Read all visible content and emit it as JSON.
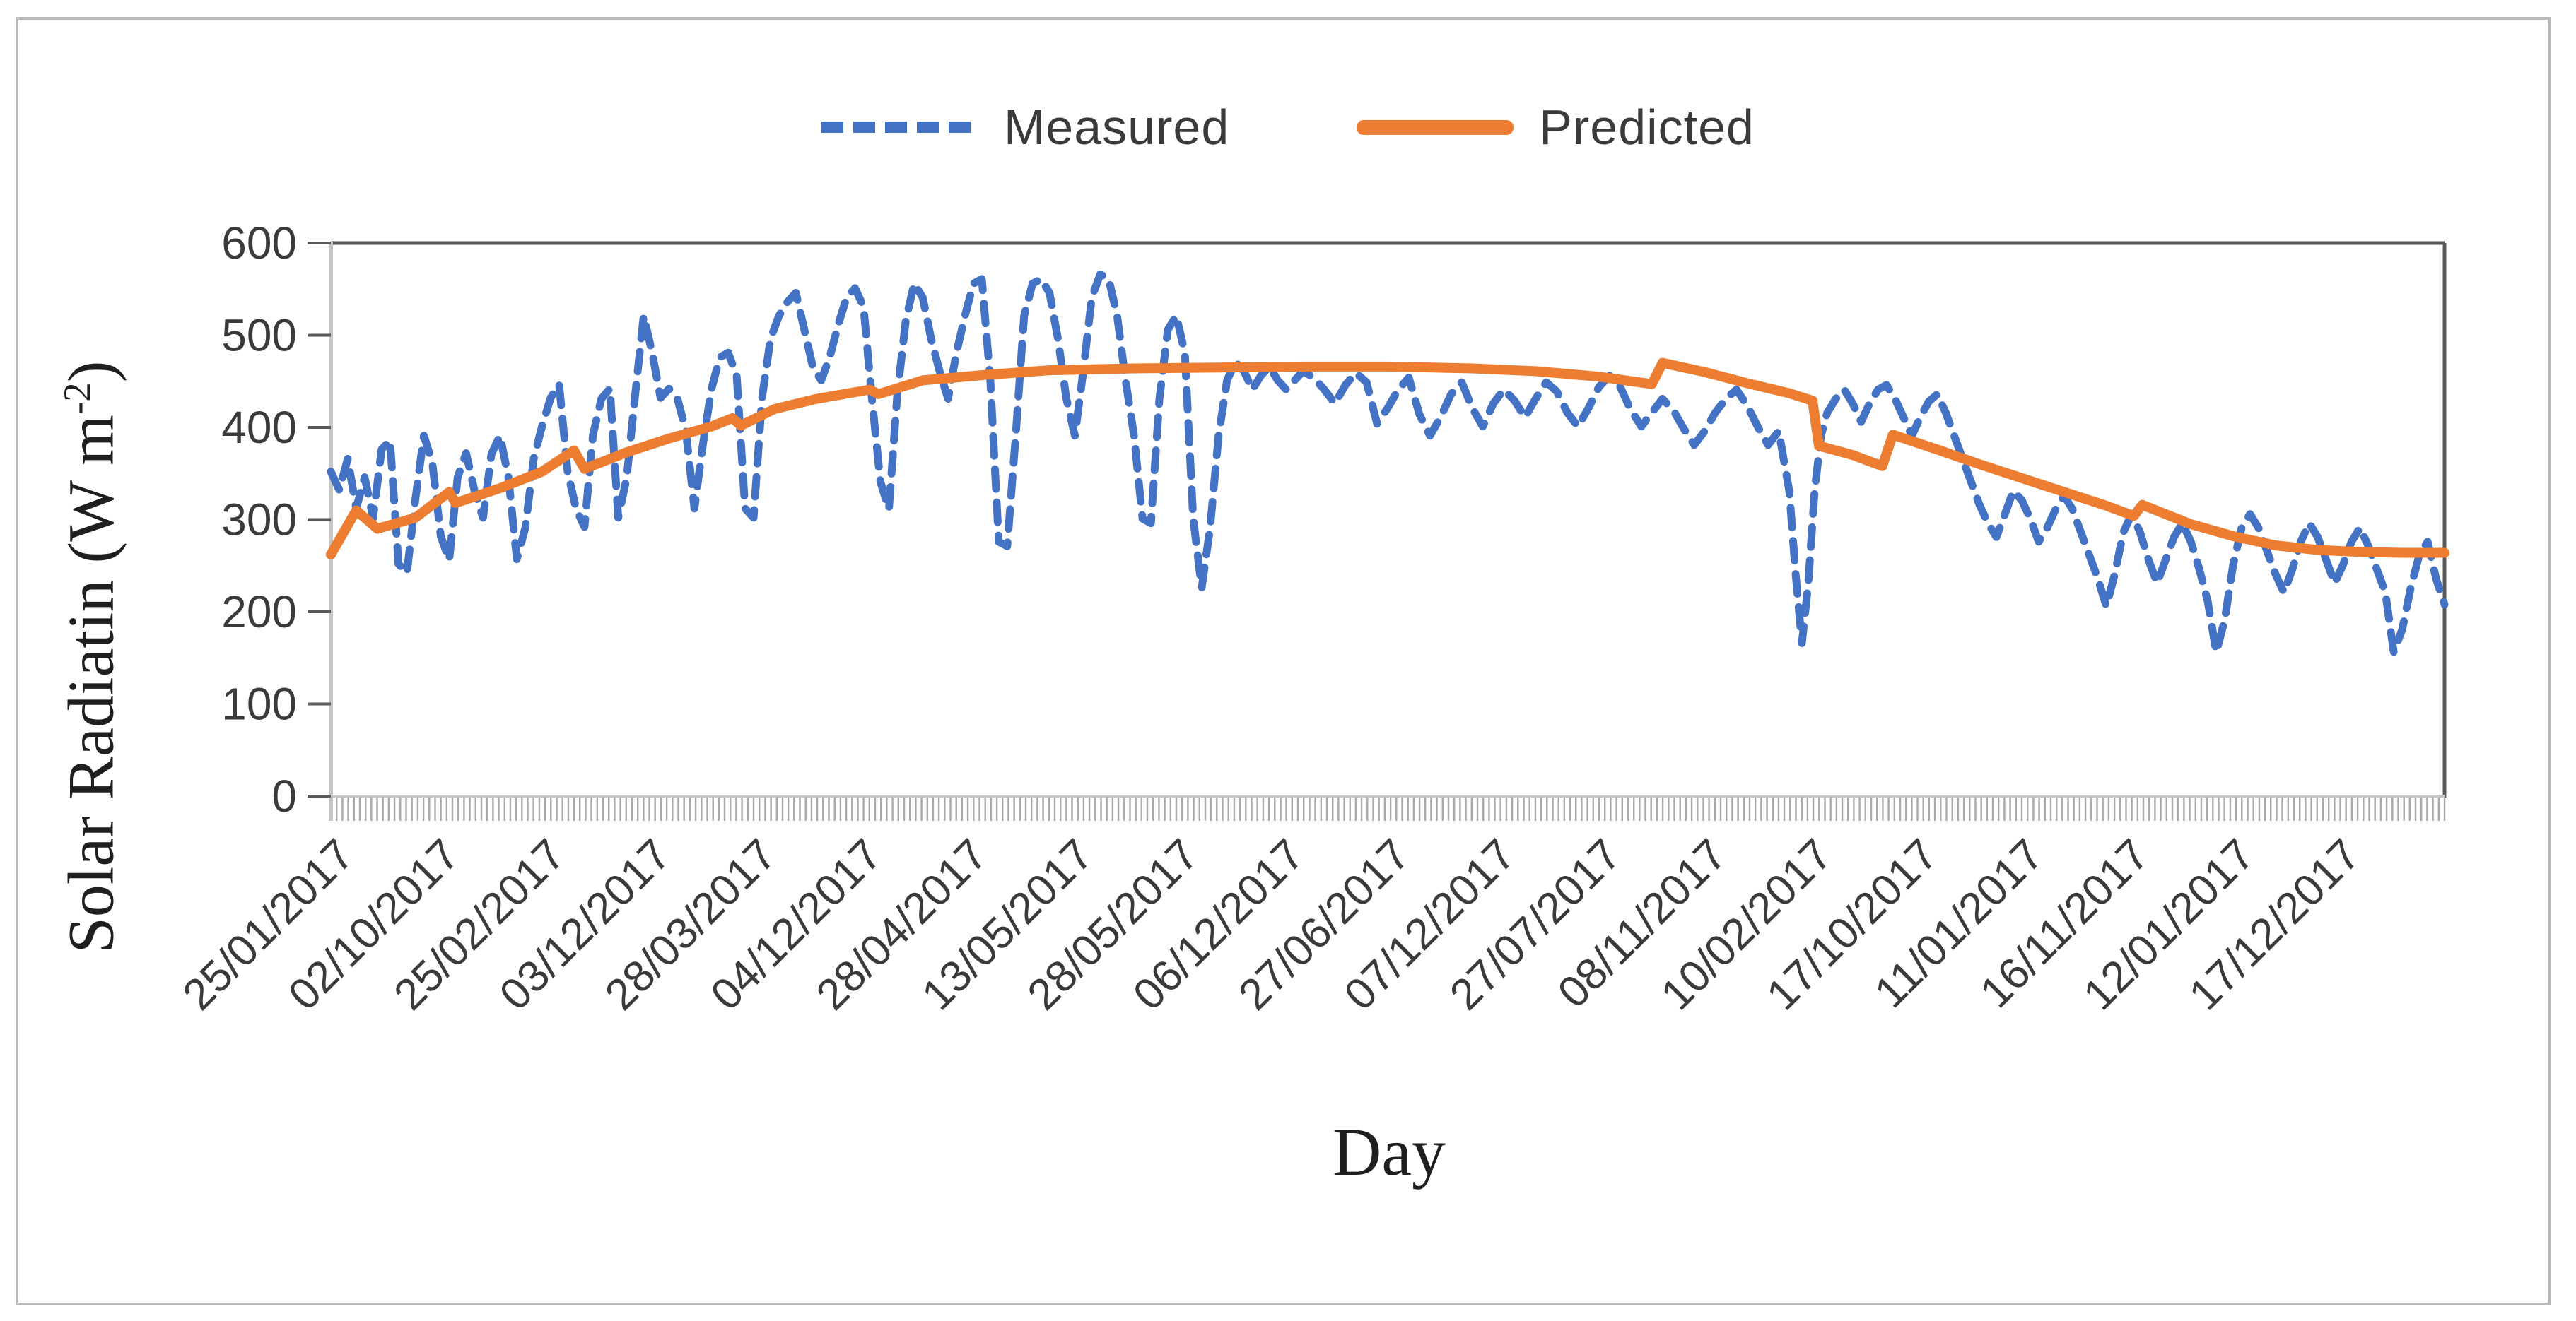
{
  "page": {
    "background": "#ffffff",
    "border_color": "#b7b9bb"
  },
  "legend": {
    "items": [
      {
        "label": "Measured",
        "color": "#4472C4",
        "style": "dashed"
      },
      {
        "label": "Predicted",
        "color": "#ED7D31",
        "style": "solid"
      }
    ]
  },
  "axes": {
    "y_title_prefix": "Solar Radiatin (W m",
    "y_title_sup": "-2",
    "y_title_suffix": ")",
    "x_title": "Day"
  },
  "chart_data": {
    "type": "line",
    "title": "",
    "xlabel": "Day",
    "ylabel": "Solar Radiatin (W m-2)",
    "ylim": [
      0,
      600
    ],
    "y_ticks": [
      0,
      100,
      200,
      300,
      400,
      500,
      600
    ],
    "grid": false,
    "legend_position": "top-center",
    "x_tick_labels": [
      "25/01/2017",
      "02/10/2017",
      "25/02/2017",
      "03/12/2017",
      "28/03/2017",
      "04/12/2017",
      "28/04/2017",
      "13/05/2017",
      "28/05/2017",
      "06/12/2017",
      "27/06/2017",
      "07/12/2017",
      "27/07/2017",
      "08/11/2017",
      "10/02/2017",
      "17/10/2017",
      "11/01/2017",
      "16/11/2017",
      "12/01/2017",
      "17/12/2017"
    ],
    "x_unit": "percent-of-axis",
    "series": [
      {
        "name": "Measured",
        "color": "#4472C4",
        "line_style": "dashed",
        "points": [
          [
            0,
            352
          ],
          [
            0.4,
            332
          ],
          [
            0.8,
            366
          ],
          [
            1.2,
            312
          ],
          [
            1.6,
            346
          ],
          [
            2,
            302
          ],
          [
            2.4,
            376
          ],
          [
            2.8,
            386
          ],
          [
            3.2,
            252
          ],
          [
            3.6,
            242
          ],
          [
            4,
            322
          ],
          [
            4.4,
            391
          ],
          [
            4.8,
            362
          ],
          [
            5.2,
            282
          ],
          [
            5.6,
            256
          ],
          [
            6,
            346
          ],
          [
            6.4,
            372
          ],
          [
            6.8,
            331
          ],
          [
            7.2,
            302
          ],
          [
            7.6,
            371
          ],
          [
            8,
            391
          ],
          [
            8.4,
            346
          ],
          [
            8.8,
            257
          ],
          [
            9.2,
            291
          ],
          [
            9.6,
            366
          ],
          [
            10,
            402
          ],
          [
            10.4,
            432
          ],
          [
            10.8,
            447
          ],
          [
            11.2,
            352
          ],
          [
            11.6,
            312
          ],
          [
            12,
            292
          ],
          [
            12.4,
            392
          ],
          [
            12.8,
            431
          ],
          [
            13.2,
            442
          ],
          [
            13.6,
            302
          ],
          [
            14,
            346
          ],
          [
            14.4,
            436
          ],
          [
            14.8,
            521
          ],
          [
            15.2,
            481
          ],
          [
            15.6,
            432
          ],
          [
            16,
            442
          ],
          [
            16.4,
            431
          ],
          [
            16.8,
            396
          ],
          [
            17.2,
            312
          ],
          [
            17.6,
            381
          ],
          [
            18,
            441
          ],
          [
            18.4,
            476
          ],
          [
            18.8,
            481
          ],
          [
            19.2,
            456
          ],
          [
            19.6,
            312
          ],
          [
            20,
            302
          ],
          [
            20.4,
            432
          ],
          [
            20.8,
            496
          ],
          [
            21.2,
            521
          ],
          [
            21.6,
            536
          ],
          [
            22,
            546
          ],
          [
            22.4,
            506
          ],
          [
            22.8,
            466
          ],
          [
            23.2,
            451
          ],
          [
            23.6,
            476
          ],
          [
            24,
            511
          ],
          [
            24.4,
            541
          ],
          [
            24.8,
            551
          ],
          [
            25.2,
            531
          ],
          [
            25.6,
            431
          ],
          [
            26,
            341
          ],
          [
            26.4,
            311
          ],
          [
            26.8,
            436
          ],
          [
            27.2,
            516
          ],
          [
            27.6,
            556
          ],
          [
            28,
            541
          ],
          [
            28.4,
            496
          ],
          [
            28.8,
            461
          ],
          [
            29.2,
            431
          ],
          [
            29.6,
            481
          ],
          [
            30,
            521
          ],
          [
            30.4,
            556
          ],
          [
            30.8,
            561
          ],
          [
            31.2,
            451
          ],
          [
            31.6,
            276
          ],
          [
            32,
            271
          ],
          [
            32.4,
            391
          ],
          [
            32.8,
            521
          ],
          [
            33.2,
            556
          ],
          [
            33.6,
            561
          ],
          [
            34,
            546
          ],
          [
            34.4,
            496
          ],
          [
            34.8,
            431
          ],
          [
            35.2,
            391
          ],
          [
            35.6,
            461
          ],
          [
            36,
            541
          ],
          [
            36.4,
            566
          ],
          [
            36.8,
            561
          ],
          [
            37.2,
            521
          ],
          [
            37.6,
            451
          ],
          [
            38,
            391
          ],
          [
            38.4,
            301
          ],
          [
            38.8,
            296
          ],
          [
            39.2,
            431
          ],
          [
            39.6,
            506
          ],
          [
            40,
            521
          ],
          [
            40.4,
            481
          ],
          [
            40.8,
            301
          ],
          [
            41.2,
            226
          ],
          [
            41.6,
            291
          ],
          [
            42,
            391
          ],
          [
            42.4,
            451
          ],
          [
            42.8,
            471
          ],
          [
            43.2,
            461
          ],
          [
            43.6,
            441
          ],
          [
            44,
            456
          ],
          [
            44.4,
            466
          ],
          [
            44.8,
            451
          ],
          [
            45.2,
            441
          ],
          [
            45.6,
            451
          ],
          [
            46,
            461
          ],
          [
            46.5,
            454
          ],
          [
            47,
            441
          ],
          [
            47.5,
            426
          ],
          [
            48,
            446
          ],
          [
            48.5,
            459
          ],
          [
            49,
            449
          ],
          [
            49.5,
            404
          ],
          [
            50,
            421
          ],
          [
            50.5,
            441
          ],
          [
            51,
            454
          ],
          [
            51.5,
            414
          ],
          [
            52,
            391
          ],
          [
            52.5,
            411
          ],
          [
            53,
            436
          ],
          [
            53.5,
            449
          ],
          [
            54,
            421
          ],
          [
            54.5,
            401
          ],
          [
            55,
            426
          ],
          [
            55.5,
            441
          ],
          [
            56,
            429
          ],
          [
            56.5,
            411
          ],
          [
            57,
            431
          ],
          [
            57.5,
            449
          ],
          [
            58,
            439
          ],
          [
            58.5,
            416
          ],
          [
            59,
            401
          ],
          [
            59.5,
            421
          ],
          [
            60,
            444
          ],
          [
            60.5,
            456
          ],
          [
            61,
            444
          ],
          [
            61.5,
            419
          ],
          [
            62,
            401
          ],
          [
            62.5,
            416
          ],
          [
            63,
            431
          ],
          [
            63.5,
            419
          ],
          [
            64,
            399
          ],
          [
            64.5,
            381
          ],
          [
            65,
            396
          ],
          [
            65.5,
            416
          ],
          [
            66,
            431
          ],
          [
            66.5,
            441
          ],
          [
            67,
            424
          ],
          [
            67.5,
            401
          ],
          [
            68,
            381
          ],
          [
            68.5,
            396
          ],
          [
            69,
            331
          ],
          [
            69.3,
            241
          ],
          [
            69.6,
            166
          ],
          [
            69.9,
            231
          ],
          [
            70.2,
            331
          ],
          [
            70.5,
            391
          ],
          [
            70.8,
            416
          ],
          [
            71.2,
            431
          ],
          [
            71.6,
            441
          ],
          [
            72,
            426
          ],
          [
            72.4,
            406
          ],
          [
            72.8,
            426
          ],
          [
            73.2,
            441
          ],
          [
            73.6,
            446
          ],
          [
            74,
            431
          ],
          [
            74.4,
            411
          ],
          [
            74.8,
            391
          ],
          [
            75.2,
            411
          ],
          [
            75.6,
            428
          ],
          [
            76,
            436
          ],
          [
            76.4,
            416
          ],
          [
            76.8,
            391
          ],
          [
            77.2,
            366
          ],
          [
            77.6,
            341
          ],
          [
            78,
            316
          ],
          [
            78.4,
            296
          ],
          [
            78.8,
            281
          ],
          [
            79.2,
            306
          ],
          [
            79.6,
            331
          ],
          [
            80,
            321
          ],
          [
            80.4,
            301
          ],
          [
            80.8,
            276
          ],
          [
            81.2,
            291
          ],
          [
            81.6,
            311
          ],
          [
            82,
            326
          ],
          [
            82.4,
            311
          ],
          [
            82.8,
            286
          ],
          [
            83.2,
            261
          ],
          [
            83.6,
            236
          ],
          [
            84,
            206
          ],
          [
            84.4,
            241
          ],
          [
            84.8,
            286
          ],
          [
            85.2,
            306
          ],
          [
            85.6,
            286
          ],
          [
            86,
            256
          ],
          [
            86.4,
            231
          ],
          [
            86.8,
            256
          ],
          [
            87.2,
            281
          ],
          [
            87.6,
            296
          ],
          [
            88,
            276
          ],
          [
            88.4,
            246
          ],
          [
            88.8,
            211
          ],
          [
            89.2,
            156
          ],
          [
            89.6,
            191
          ],
          [
            90,
            251
          ],
          [
            90.4,
            291
          ],
          [
            90.8,
            306
          ],
          [
            91.2,
            291
          ],
          [
            91.6,
            266
          ],
          [
            92,
            241
          ],
          [
            92.4,
            221
          ],
          [
            92.8,
            246
          ],
          [
            93.2,
            276
          ],
          [
            93.6,
            296
          ],
          [
            94,
            281
          ],
          [
            94.4,
            256
          ],
          [
            94.8,
            231
          ],
          [
            95.2,
            251
          ],
          [
            95.6,
            276
          ],
          [
            96,
            291
          ],
          [
            96.4,
            271
          ],
          [
            96.8,
            246
          ],
          [
            97.2,
            221
          ],
          [
            97.6,
            156
          ],
          [
            98,
            181
          ],
          [
            98.4,
            226
          ],
          [
            98.8,
            261
          ],
          [
            99.2,
            276
          ],
          [
            99.6,
            236
          ],
          [
            100,
            208
          ]
        ]
      },
      {
        "name": "Predicted",
        "color": "#ED7D31",
        "line_style": "solid",
        "points": [
          [
            0,
            262
          ],
          [
            1.2,
            310
          ],
          [
            2.2,
            290
          ],
          [
            4,
            302
          ],
          [
            5.6,
            330
          ],
          [
            5.9,
            318
          ],
          [
            8,
            334
          ],
          [
            10,
            352
          ],
          [
            11.5,
            375
          ],
          [
            12,
            355
          ],
          [
            14,
            373
          ],
          [
            16,
            388
          ],
          [
            18,
            401
          ],
          [
            19,
            410
          ],
          [
            19.4,
            402
          ],
          [
            21,
            420
          ],
          [
            23,
            431
          ],
          [
            25.5,
            441
          ],
          [
            25.9,
            436
          ],
          [
            28,
            451
          ],
          [
            31,
            457
          ],
          [
            34,
            462
          ],
          [
            38,
            464
          ],
          [
            42,
            465
          ],
          [
            46,
            466
          ],
          [
            50,
            466
          ],
          [
            54,
            464
          ],
          [
            57,
            461
          ],
          [
            60,
            455
          ],
          [
            62.5,
            447
          ],
          [
            63,
            470
          ],
          [
            65,
            460
          ],
          [
            67,
            448
          ],
          [
            69,
            437
          ],
          [
            70.1,
            429
          ],
          [
            70.4,
            380
          ],
          [
            72,
            370
          ],
          [
            73.4,
            358
          ],
          [
            73.9,
            392
          ],
          [
            76,
            376
          ],
          [
            78,
            360
          ],
          [
            80,
            345
          ],
          [
            82,
            330
          ],
          [
            84,
            315
          ],
          [
            85.3,
            304
          ],
          [
            85.7,
            316
          ],
          [
            88,
            295
          ],
          [
            90,
            282
          ],
          [
            92,
            272
          ],
          [
            94,
            267
          ],
          [
            96,
            265
          ],
          [
            98,
            264
          ],
          [
            100,
            264
          ]
        ]
      }
    ]
  },
  "plot_style": {
    "frame_dark": "#595959",
    "frame_light": "#c6c6c6",
    "tick_color": "#595959",
    "minor_tick_color": "#a9a9a9",
    "label_color": "#3a3a3a",
    "minor_tick_count": 365
  }
}
